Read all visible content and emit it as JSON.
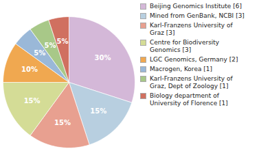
{
  "chart_data": {
    "type": "pie",
    "categories": [
      "Beijing Genomics Institute [6]",
      "Mined from GenBank, NCBI [3]",
      "Karl-Franzens University of\nGraz [3]",
      "Centre for Biodiversity\nGenomics [3]",
      "LGC Genomics, Germany [2]",
      "Macrogen, Korea [1]",
      "Karl-Franzens University of\nGraz, Dept of Zoology [1]",
      "Biology department of\nUniversity of Florence [1]"
    ],
    "values": [
      30,
      15,
      15,
      15,
      10,
      5,
      5,
      5
    ],
    "value_labels": [
      "30%",
      "15%",
      "15%",
      "15%",
      "10%",
      "5%",
      "5%",
      "5%"
    ],
    "colors": [
      "#d4b8d8",
      "#b8cfe0",
      "#e8a090",
      "#d4dc96",
      "#f0a850",
      "#9ab8d8",
      "#a8c888",
      "#d07060"
    ],
    "data_labels": true,
    "legend": "right"
  }
}
